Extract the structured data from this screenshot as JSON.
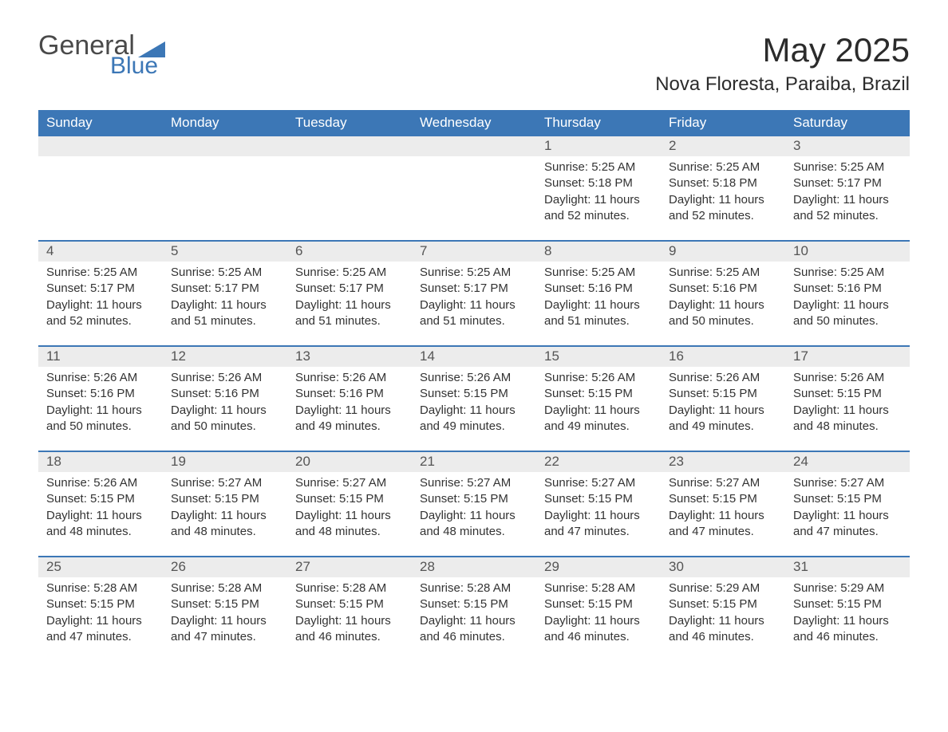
{
  "brand": {
    "word1": "General",
    "word2": "Blue"
  },
  "title": "May 2025",
  "location": "Nova Floresta, Paraiba, Brazil",
  "colors": {
    "header_bg": "#3c77b6",
    "header_text": "#ffffff",
    "daynum_bg": "#ececec",
    "body_text": "#333333",
    "rule": "#3c77b6",
    "logo_accent": "#3c77b6",
    "logo_text": "#4a4a4a"
  },
  "typography": {
    "title_fontsize": 42,
    "location_fontsize": 24,
    "dow_fontsize": 17,
    "body_fontsize": 15
  },
  "layout": {
    "columns": 7,
    "leading_blanks": 4
  },
  "days_of_week": [
    "Sunday",
    "Monday",
    "Tuesday",
    "Wednesday",
    "Thursday",
    "Friday",
    "Saturday"
  ],
  "labels": {
    "sunrise": "Sunrise",
    "sunset": "Sunset",
    "daylight": "Daylight"
  },
  "days": [
    {
      "n": 1,
      "sunrise": "5:25 AM",
      "sunset": "5:18 PM",
      "daylight": "11 hours and 52 minutes."
    },
    {
      "n": 2,
      "sunrise": "5:25 AM",
      "sunset": "5:18 PM",
      "daylight": "11 hours and 52 minutes."
    },
    {
      "n": 3,
      "sunrise": "5:25 AM",
      "sunset": "5:17 PM",
      "daylight": "11 hours and 52 minutes."
    },
    {
      "n": 4,
      "sunrise": "5:25 AM",
      "sunset": "5:17 PM",
      "daylight": "11 hours and 52 minutes."
    },
    {
      "n": 5,
      "sunrise": "5:25 AM",
      "sunset": "5:17 PM",
      "daylight": "11 hours and 51 minutes."
    },
    {
      "n": 6,
      "sunrise": "5:25 AM",
      "sunset": "5:17 PM",
      "daylight": "11 hours and 51 minutes."
    },
    {
      "n": 7,
      "sunrise": "5:25 AM",
      "sunset": "5:17 PM",
      "daylight": "11 hours and 51 minutes."
    },
    {
      "n": 8,
      "sunrise": "5:25 AM",
      "sunset": "5:16 PM",
      "daylight": "11 hours and 51 minutes."
    },
    {
      "n": 9,
      "sunrise": "5:25 AM",
      "sunset": "5:16 PM",
      "daylight": "11 hours and 50 minutes."
    },
    {
      "n": 10,
      "sunrise": "5:25 AM",
      "sunset": "5:16 PM",
      "daylight": "11 hours and 50 minutes."
    },
    {
      "n": 11,
      "sunrise": "5:26 AM",
      "sunset": "5:16 PM",
      "daylight": "11 hours and 50 minutes."
    },
    {
      "n": 12,
      "sunrise": "5:26 AM",
      "sunset": "5:16 PM",
      "daylight": "11 hours and 50 minutes."
    },
    {
      "n": 13,
      "sunrise": "5:26 AM",
      "sunset": "5:16 PM",
      "daylight": "11 hours and 49 minutes."
    },
    {
      "n": 14,
      "sunrise": "5:26 AM",
      "sunset": "5:15 PM",
      "daylight": "11 hours and 49 minutes."
    },
    {
      "n": 15,
      "sunrise": "5:26 AM",
      "sunset": "5:15 PM",
      "daylight": "11 hours and 49 minutes."
    },
    {
      "n": 16,
      "sunrise": "5:26 AM",
      "sunset": "5:15 PM",
      "daylight": "11 hours and 49 minutes."
    },
    {
      "n": 17,
      "sunrise": "5:26 AM",
      "sunset": "5:15 PM",
      "daylight": "11 hours and 48 minutes."
    },
    {
      "n": 18,
      "sunrise": "5:26 AM",
      "sunset": "5:15 PM",
      "daylight": "11 hours and 48 minutes."
    },
    {
      "n": 19,
      "sunrise": "5:27 AM",
      "sunset": "5:15 PM",
      "daylight": "11 hours and 48 minutes."
    },
    {
      "n": 20,
      "sunrise": "5:27 AM",
      "sunset": "5:15 PM",
      "daylight": "11 hours and 48 minutes."
    },
    {
      "n": 21,
      "sunrise": "5:27 AM",
      "sunset": "5:15 PM",
      "daylight": "11 hours and 48 minutes."
    },
    {
      "n": 22,
      "sunrise": "5:27 AM",
      "sunset": "5:15 PM",
      "daylight": "11 hours and 47 minutes."
    },
    {
      "n": 23,
      "sunrise": "5:27 AM",
      "sunset": "5:15 PM",
      "daylight": "11 hours and 47 minutes."
    },
    {
      "n": 24,
      "sunrise": "5:27 AM",
      "sunset": "5:15 PM",
      "daylight": "11 hours and 47 minutes."
    },
    {
      "n": 25,
      "sunrise": "5:28 AM",
      "sunset": "5:15 PM",
      "daylight": "11 hours and 47 minutes."
    },
    {
      "n": 26,
      "sunrise": "5:28 AM",
      "sunset": "5:15 PM",
      "daylight": "11 hours and 47 minutes."
    },
    {
      "n": 27,
      "sunrise": "5:28 AM",
      "sunset": "5:15 PM",
      "daylight": "11 hours and 46 minutes."
    },
    {
      "n": 28,
      "sunrise": "5:28 AM",
      "sunset": "5:15 PM",
      "daylight": "11 hours and 46 minutes."
    },
    {
      "n": 29,
      "sunrise": "5:28 AM",
      "sunset": "5:15 PM",
      "daylight": "11 hours and 46 minutes."
    },
    {
      "n": 30,
      "sunrise": "5:29 AM",
      "sunset": "5:15 PM",
      "daylight": "11 hours and 46 minutes."
    },
    {
      "n": 31,
      "sunrise": "5:29 AM",
      "sunset": "5:15 PM",
      "daylight": "11 hours and 46 minutes."
    }
  ]
}
